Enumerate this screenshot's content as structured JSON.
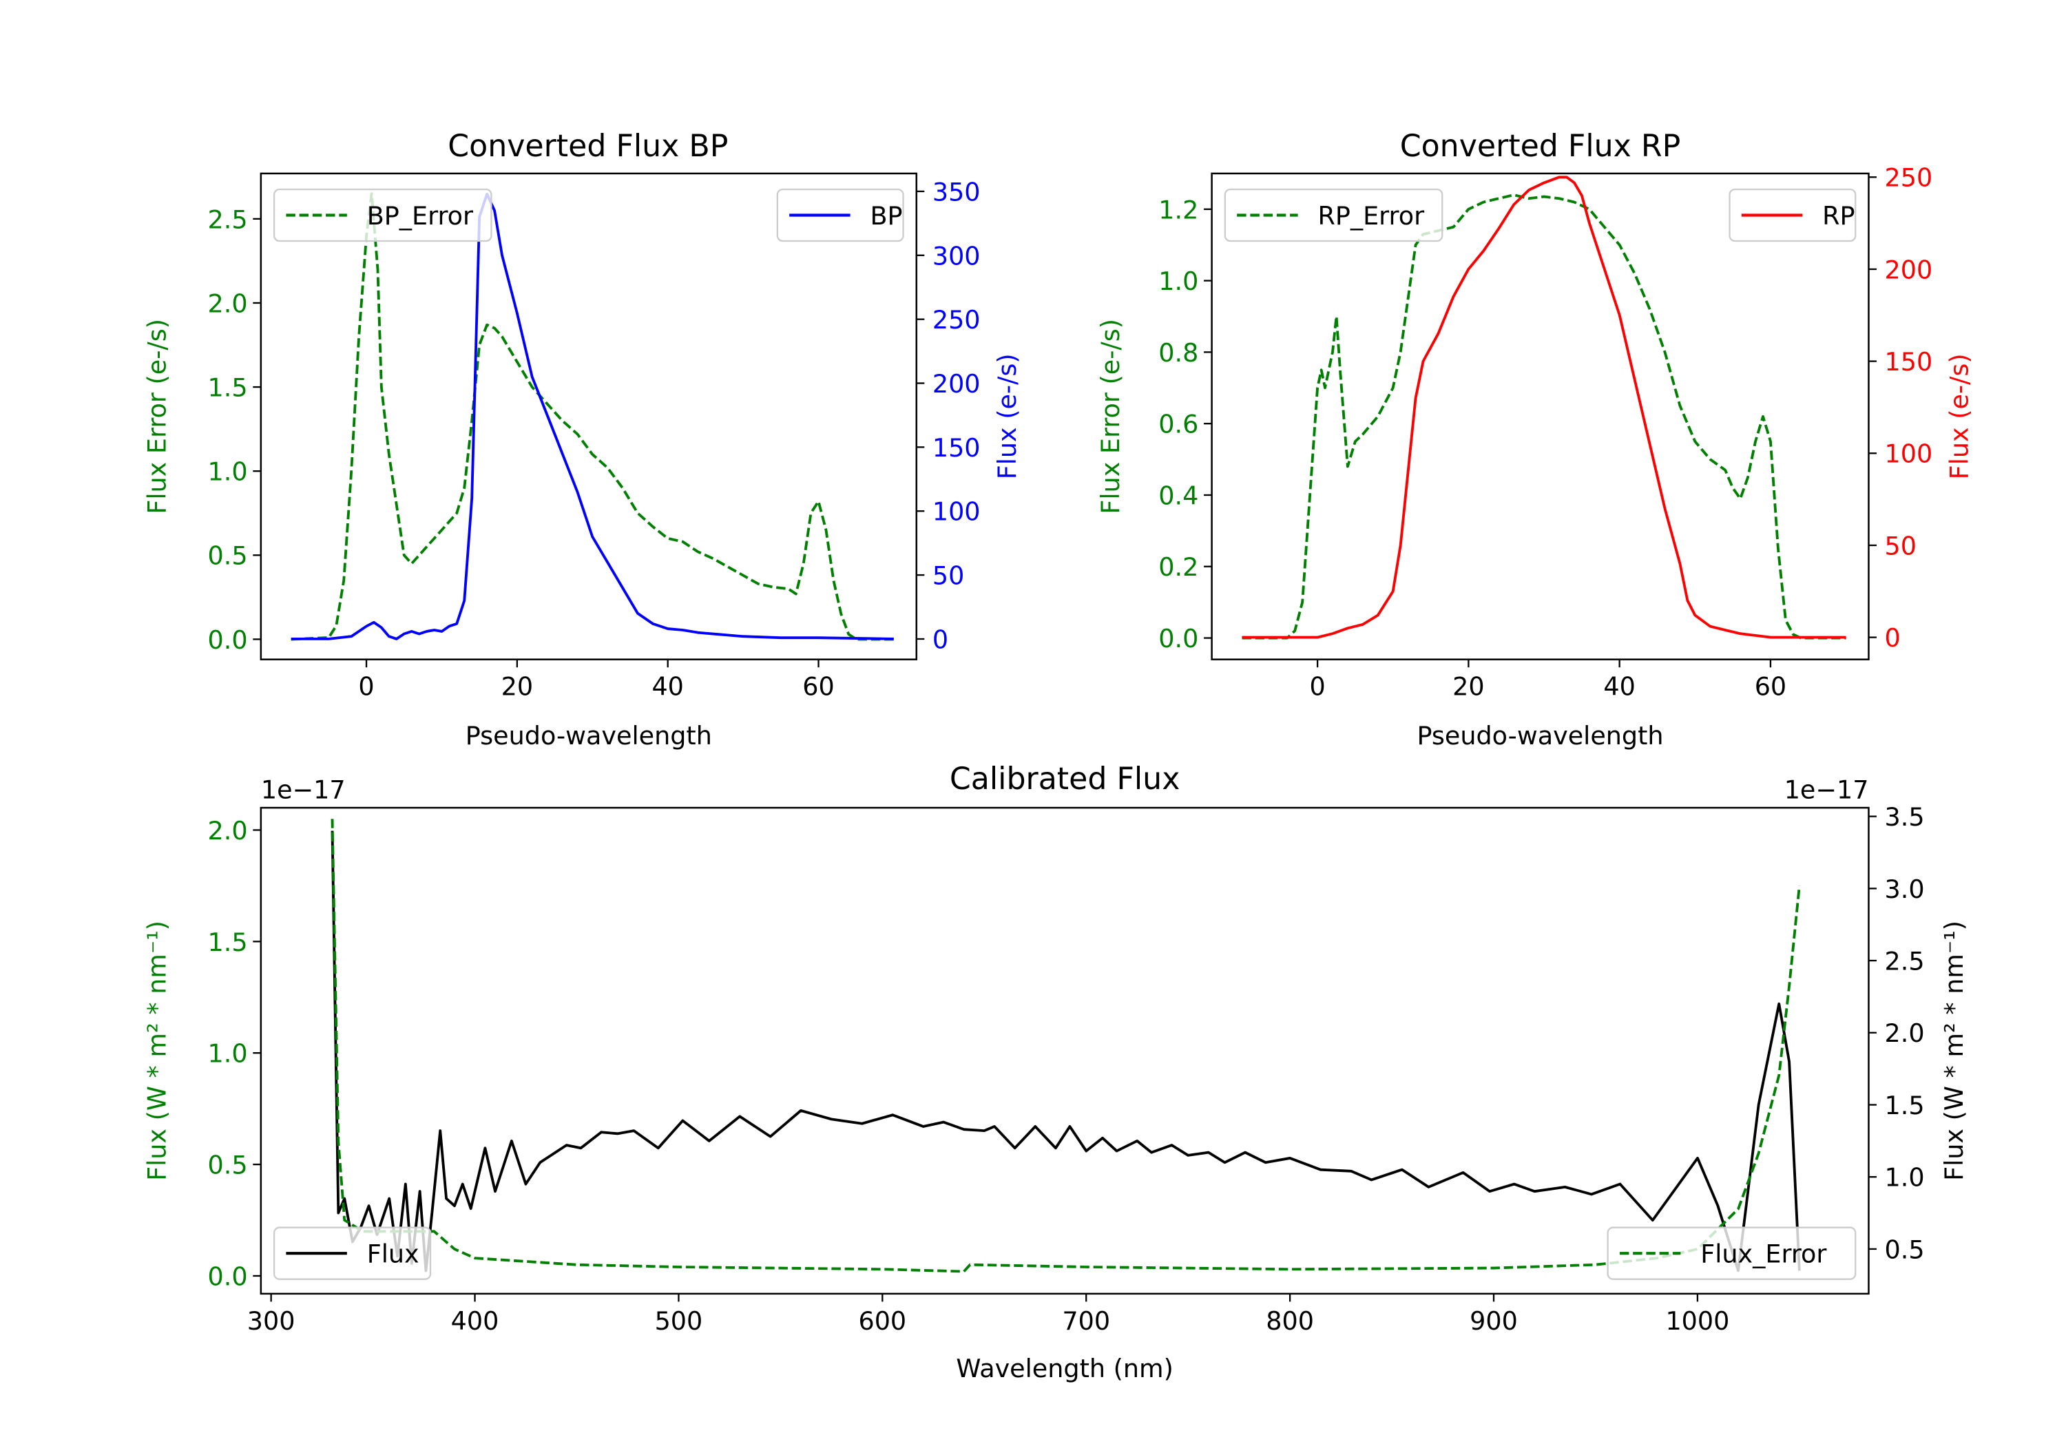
{
  "chart_data": [
    {
      "type": "line",
      "title": "Converted Flux BP",
      "xlabel": "Pseudo-wavelength",
      "ylabel_left": "Flux Error (e-/s)",
      "ylabel_right": "Flux (e-/s)",
      "xlim": [
        -14,
        73
      ],
      "ylim_left": [
        -0.12,
        2.77
      ],
      "ylim_right": [
        -16,
        364
      ],
      "xticks": [
        0,
        20,
        40,
        60
      ],
      "xtick_labels": [
        "0",
        "20",
        "40",
        "60"
      ],
      "yticks_left": [
        0,
        0.5,
        1.0,
        1.5,
        2.0,
        2.5
      ],
      "ytick_labels_left": [
        "0.0",
        "0.5",
        "1.0",
        "1.5",
        "2.0",
        "2.5"
      ],
      "yticks_right": [
        0,
        50,
        100,
        150,
        200,
        250,
        300,
        350
      ],
      "ytick_labels_right": [
        "0",
        "50",
        "100",
        "150",
        "200",
        "250",
        "300",
        "350"
      ],
      "left_color": "#008000",
      "right_color": "#0000ff",
      "series": [
        {
          "name": "BP_Error",
          "axis": "left",
          "color": "#008000",
          "style": "dashed",
          "legend": "upper-left",
          "x": [
            -10,
            -5,
            -4,
            -3,
            -2,
            -1,
            0,
            0.7,
            1.5,
            2,
            3,
            4,
            5,
            6,
            7,
            8,
            10,
            12,
            13,
            14,
            15,
            16,
            17,
            18,
            20,
            22,
            24,
            26,
            28,
            30,
            32,
            34,
            36,
            38,
            40,
            42,
            44,
            46,
            48,
            50,
            52,
            54,
            56,
            57,
            58,
            59,
            60,
            61,
            62,
            63,
            64,
            65,
            70
          ],
          "y": [
            0,
            0.01,
            0.08,
            0.35,
            1.0,
            1.8,
            2.4,
            2.65,
            2.2,
            1.5,
            1.1,
            0.8,
            0.5,
            0.45,
            0.5,
            0.55,
            0.65,
            0.75,
            0.9,
            1.3,
            1.75,
            1.87,
            1.85,
            1.8,
            1.65,
            1.5,
            1.4,
            1.3,
            1.22,
            1.1,
            1.02,
            0.9,
            0.75,
            0.67,
            0.6,
            0.58,
            0.52,
            0.48,
            0.43,
            0.38,
            0.33,
            0.31,
            0.3,
            0.27,
            0.45,
            0.75,
            0.82,
            0.65,
            0.35,
            0.15,
            0.03,
            0,
            0
          ]
        },
        {
          "name": "BP",
          "axis": "right",
          "color": "#0000ff",
          "style": "solid",
          "legend": "upper-right",
          "x": [
            -10,
            -5,
            -2,
            0,
            1,
            2,
            3,
            4,
            5,
            6,
            7,
            8,
            9,
            10,
            11,
            12,
            13,
            14,
            15,
            16,
            17,
            18,
            20,
            22,
            24,
            26,
            28,
            30,
            32,
            34,
            36,
            38,
            40,
            42,
            44,
            46,
            50,
            55,
            60,
            70
          ],
          "y": [
            0,
            0,
            2,
            10,
            13,
            9,
            2,
            0,
            4,
            6,
            4,
            6,
            7,
            6,
            10,
            12,
            30,
            110,
            330,
            348,
            335,
            300,
            255,
            205,
            175,
            145,
            115,
            80,
            60,
            40,
            20,
            12,
            8,
            7,
            5,
            4,
            2,
            1,
            1,
            0
          ]
        }
      ]
    },
    {
      "type": "line",
      "title": "Converted Flux RP",
      "xlabel": "Pseudo-wavelength",
      "ylabel_left": "Flux Error (e-/s)",
      "ylabel_right": "Flux (e-/s)",
      "xlim": [
        -14,
        73
      ],
      "ylim_left": [
        -0.06,
        1.3
      ],
      "ylim_right": [
        -12,
        252
      ],
      "xticks": [
        0,
        20,
        40,
        60
      ],
      "xtick_labels": [
        "0",
        "20",
        "40",
        "60"
      ],
      "yticks_left": [
        0,
        0.2,
        0.4,
        0.6,
        0.8,
        1.0,
        1.2
      ],
      "ytick_labels_left": [
        "0.0",
        "0.2",
        "0.4",
        "0.6",
        "0.8",
        "1.0",
        "1.2"
      ],
      "yticks_right": [
        0,
        50,
        100,
        150,
        200,
        250
      ],
      "ytick_labels_right": [
        "0",
        "50",
        "100",
        "150",
        "200",
        "250"
      ],
      "left_color": "#008000",
      "right_color": "#ff0000",
      "series": [
        {
          "name": "RP_Error",
          "axis": "left",
          "color": "#008000",
          "style": "dashed",
          "legend": "upper-left",
          "x": [
            -10,
            -4,
            -3,
            -2,
            -1,
            0,
            0.5,
            1,
            2,
            2.5,
            3,
            4,
            5,
            6,
            8,
            10,
            11,
            12,
            13,
            14,
            16,
            18,
            20,
            22,
            24,
            26,
            28,
            30,
            32,
            34,
            36,
            38,
            40,
            42,
            44,
            46,
            48,
            50,
            52,
            54,
            55,
            56,
            57,
            58,
            59,
            60,
            61,
            62,
            63,
            64,
            70
          ],
          "y": [
            0,
            0,
            0.02,
            0.1,
            0.4,
            0.7,
            0.75,
            0.7,
            0.8,
            0.9,
            0.75,
            0.48,
            0.55,
            0.57,
            0.62,
            0.7,
            0.8,
            0.95,
            1.1,
            1.13,
            1.14,
            1.15,
            1.2,
            1.22,
            1.23,
            1.24,
            1.23,
            1.235,
            1.23,
            1.22,
            1.2,
            1.15,
            1.1,
            1.02,
            0.92,
            0.8,
            0.65,
            0.55,
            0.5,
            0.47,
            0.42,
            0.39,
            0.45,
            0.55,
            0.62,
            0.55,
            0.25,
            0.05,
            0.01,
            0,
            0
          ]
        },
        {
          "name": "RP",
          "axis": "right",
          "color": "#ff0000",
          "style": "solid",
          "legend": "upper-right",
          "x": [
            -10,
            0,
            2,
            4,
            6,
            8,
            10,
            11,
            12,
            13,
            14,
            16,
            18,
            20,
            22,
            24,
            26,
            28,
            30,
            32,
            33,
            34,
            35,
            36,
            38,
            40,
            42,
            44,
            46,
            48,
            49,
            50,
            52,
            54,
            56,
            58,
            60,
            70
          ],
          "y": [
            0,
            0,
            2,
            5,
            7,
            12,
            25,
            50,
            90,
            130,
            150,
            165,
            185,
            200,
            210,
            222,
            235,
            243,
            247,
            250,
            250,
            247,
            240,
            225,
            200,
            175,
            140,
            105,
            70,
            40,
            20,
            12,
            6,
            4,
            2,
            1,
            0,
            0
          ]
        }
      ]
    },
    {
      "type": "line",
      "title": "Calibrated Flux",
      "xlabel": "Wavelength (nm)",
      "ylabel_left": "Flux (W * m² * nm⁻¹)",
      "ylabel_right": "Flux (W * m² * nm⁻¹)",
      "offset_left": "1e−17",
      "offset_right": "1e−17",
      "xlim": [
        295,
        1084
      ],
      "ylim_left": [
        -0.08,
        2.1
      ],
      "ylim_right": [
        0.19,
        3.56
      ],
      "xticks": [
        300,
        400,
        500,
        600,
        700,
        800,
        900,
        1000
      ],
      "xtick_labels": [
        "300",
        "400",
        "500",
        "600",
        "700",
        "800",
        "900",
        "1000"
      ],
      "yticks_left": [
        0,
        0.5,
        1.0,
        1.5,
        2.0
      ],
      "ytick_labels_left": [
        "0.0",
        "0.5",
        "1.0",
        "1.5",
        "2.0"
      ],
      "yticks_right": [
        0.5,
        1.0,
        1.5,
        2.0,
        2.5,
        3.0,
        3.5
      ],
      "ytick_labels_right": [
        "0.5",
        "1.0",
        "1.5",
        "2.0",
        "2.5",
        "3.0",
        "3.5"
      ],
      "left_color": "#008000",
      "right_color": "#000000",
      "series": [
        {
          "name": "Flux",
          "axis": "right",
          "color": "#000000",
          "style": "solid",
          "legend": "lower-left",
          "x": [
            330,
            333,
            336,
            340,
            344,
            348,
            352,
            358,
            362,
            366,
            369,
            373,
            376,
            379,
            383,
            386,
            390,
            394,
            398,
            405,
            410,
            418,
            425,
            432,
            445,
            452,
            462,
            470,
            478,
            490,
            502,
            515,
            530,
            545,
            560,
            575,
            590,
            605,
            620,
            630,
            640,
            650,
            655,
            665,
            675,
            685,
            692,
            700,
            708,
            715,
            725,
            732,
            742,
            750,
            760,
            768,
            778,
            788,
            800,
            815,
            830,
            840,
            855,
            868,
            885,
            898,
            910,
            920,
            935,
            948,
            962,
            978,
            1000,
            1010,
            1020,
            1030,
            1040,
            1045,
            1050
          ],
          "y": [
            3.4,
            0.75,
            0.85,
            0.55,
            0.65,
            0.8,
            0.6,
            0.85,
            0.45,
            0.95,
            0.4,
            0.9,
            0.35,
            0.75,
            1.32,
            0.85,
            0.8,
            0.95,
            0.78,
            1.2,
            0.9,
            1.25,
            0.95,
            1.1,
            1.22,
            1.2,
            1.31,
            1.3,
            1.32,
            1.2,
            1.39,
            1.25,
            1.42,
            1.28,
            1.46,
            1.4,
            1.37,
            1.43,
            1.35,
            1.38,
            1.33,
            1.32,
            1.35,
            1.2,
            1.35,
            1.2,
            1.35,
            1.18,
            1.27,
            1.18,
            1.25,
            1.17,
            1.22,
            1.15,
            1.17,
            1.1,
            1.17,
            1.1,
            1.13,
            1.05,
            1.04,
            0.98,
            1.05,
            0.93,
            1.03,
            0.9,
            0.95,
            0.9,
            0.93,
            0.88,
            0.95,
            0.7,
            1.13,
            0.8,
            0.35,
            1.5,
            2.2,
            1.8,
            0.35
          ]
        },
        {
          "name": "Flux_Error",
          "axis": "left",
          "color": "#008000",
          "style": "dashed",
          "legend": "lower-right",
          "x": [
            330,
            333,
            336,
            345,
            360,
            380,
            390,
            400,
            450,
            500,
            600,
            640,
            643,
            700,
            800,
            900,
            950,
            980,
            1000,
            1020,
            1030,
            1040,
            1045,
            1050
          ],
          "y": [
            2.05,
            0.6,
            0.25,
            0.2,
            0.2,
            0.2,
            0.12,
            0.08,
            0.05,
            0.04,
            0.03,
            0.02,
            0.05,
            0.04,
            0.03,
            0.035,
            0.05,
            0.08,
            0.12,
            0.3,
            0.55,
            0.9,
            1.3,
            1.75
          ]
        }
      ]
    }
  ]
}
